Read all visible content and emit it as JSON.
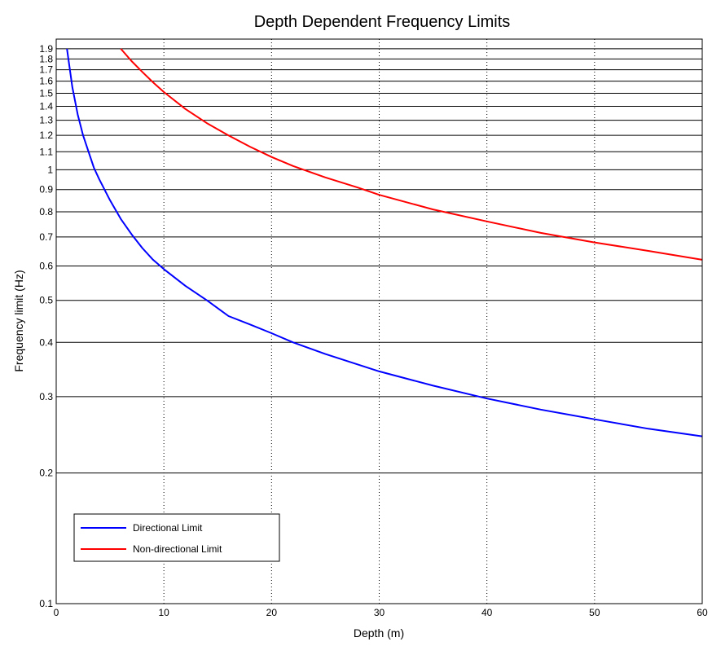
{
  "chart_data": {
    "type": "line",
    "title": "Depth Dependent Frequency Limits",
    "xlabel": "Depth (m)",
    "ylabel": "Frequency limit (Hz)",
    "xlim": [
      0,
      60
    ],
    "ylim": [
      0.1,
      2
    ],
    "y_scale": "log",
    "grid": true,
    "x_grid_style": "dotted",
    "y_grid_style": "solid",
    "legend_position": "bottom-left",
    "x_ticks": [
      "0",
      "10",
      "20",
      "30",
      "40",
      "50",
      "60"
    ],
    "y_ticks": [
      {
        "value": 0.1,
        "label": "0.1"
      },
      {
        "value": 0.2,
        "label": "0.2"
      },
      {
        "value": 0.3,
        "label": "0.3"
      },
      {
        "value": 0.4,
        "label": "0.4"
      },
      {
        "value": 0.5,
        "label": "0.5"
      },
      {
        "value": 0.6,
        "label": "0.6"
      },
      {
        "value": 0.7,
        "label": "0.7"
      },
      {
        "value": 0.8,
        "label": "0.8"
      },
      {
        "value": 0.9,
        "label": "0.9"
      },
      {
        "value": 1.0,
        "label": "1"
      },
      {
        "value": 1.1,
        "label": "1.1"
      },
      {
        "value": 1.2,
        "label": "1.2"
      },
      {
        "value": 1.3,
        "label": "1.3"
      },
      {
        "value": 1.4,
        "label": "1.4"
      },
      {
        "value": 1.5,
        "label": "1.5"
      },
      {
        "value": 1.6,
        "label": "1.6"
      },
      {
        "value": 1.7,
        "label": "1.7"
      },
      {
        "value": 1.8,
        "label": "1.8"
      },
      {
        "value": 1.9,
        "label": "1.9"
      }
    ],
    "series": [
      {
        "name": "Directional Limit",
        "color": "#0000ff",
        "x": [
          1,
          1.5,
          2,
          2.5,
          3,
          3.5,
          4,
          5,
          6,
          7,
          8,
          9,
          10,
          12,
          14,
          16,
          18,
          20,
          22,
          25,
          30,
          35,
          40,
          45,
          50,
          55,
          60
        ],
        "y": [
          1.9,
          1.55,
          1.34,
          1.2,
          1.1,
          1.01,
          0.95,
          0.85,
          0.77,
          0.71,
          0.66,
          0.62,
          0.59,
          0.54,
          0.5,
          0.46,
          0.44,
          0.42,
          0.4,
          0.376,
          0.343,
          0.318,
          0.297,
          0.28,
          0.266,
          0.253,
          0.243
        ]
      },
      {
        "name": "Non-directional Limit",
        "color": "#ff0000",
        "x": [
          6,
          7,
          8,
          9,
          10,
          12,
          14,
          16,
          18,
          20,
          22,
          25,
          28,
          30,
          35,
          40,
          45,
          50,
          55,
          60
        ],
        "y": [
          1.9,
          1.78,
          1.68,
          1.59,
          1.51,
          1.38,
          1.28,
          1.2,
          1.13,
          1.07,
          1.02,
          0.96,
          0.91,
          0.875,
          0.81,
          0.76,
          0.715,
          0.68,
          0.65,
          0.62
        ]
      }
    ]
  }
}
